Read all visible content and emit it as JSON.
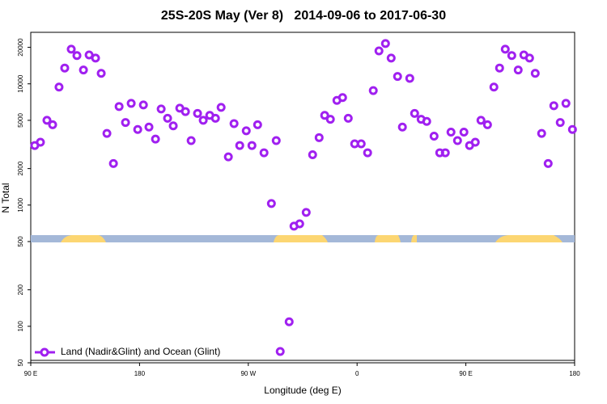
{
  "chart_data": {
    "type": "scatter",
    "title": "25S-20S May (Ver 8)   2014-09-06 to 2017-06-30",
    "x_label": "Longitude (deg E)",
    "y_label": "N Total",
    "xlim": [
      90,
      540
    ],
    "xticks": [
      {
        "value": 90,
        "label": "90 E"
      },
      {
        "value": 180,
        "label": "180"
      },
      {
        "value": 270,
        "label": "90 W"
      },
      {
        "value": 360,
        "label": "0"
      },
      {
        "value": 450,
        "label": "90 E"
      },
      {
        "value": 540,
        "label": "180"
      }
    ],
    "ylim": [
      50,
      26600
    ],
    "yticks": [
      50,
      100,
      200,
      500,
      1000,
      2000,
      5000,
      10000,
      20000
    ],
    "y_scale": "log",
    "legend": "lower left",
    "x": [
      93.3,
      98.0,
      103.4,
      108.1,
      113.4,
      118.1,
      123.5,
      128.2,
      133.6,
      138.3,
      143.6,
      148.3,
      153.0,
      158.4,
      163.1,
      168.4,
      173.1,
      178.5,
      183.2,
      187.8,
      193.2,
      197.9,
      203.2,
      207.9,
      213.3,
      218.0,
      222.7,
      228.0,
      232.7,
      238.1,
      242.8,
      247.5,
      253.5,
      258.2,
      262.9,
      268.3,
      273.0,
      277.7,
      283.0,
      289.1,
      293.1,
      296.4,
      303.8,
      307.8,
      312.5,
      317.9,
      323.2,
      328.6,
      333.2,
      337.9,
      343.3,
      348.0,
      352.7,
      358.0,
      363.4,
      368.7,
      373.4,
      378.1,
      383.5,
      388.2,
      393.5,
      397.5,
      403.6,
      407.6,
      413.0,
      417.6,
      423.7,
      428.4,
      433.0,
      437.7,
      443.1,
      448.4,
      453.1,
      457.8,
      462.5,
      467.9,
      473.2,
      477.9,
      482.6,
      488.0,
      493.3,
      498.0,
      502.7,
      507.4,
      512.7,
      518.1,
      522.8,
      528.1,
      532.8,
      538.2
    ],
    "series": [
      {
        "name": "Land (Nadir&Glint) and Ocean (Glint)",
        "color": "#a020f0",
        "values": [
          3100,
          3300,
          5000,
          4600,
          9400,
          13500,
          19300,
          17100,
          13000,
          17300,
          16300,
          12200,
          3900,
          2200,
          6500,
          4800,
          6900,
          4200,
          6700,
          4400,
          3500,
          6200,
          5200,
          4500,
          6300,
          5900,
          3400,
          5700,
          5000,
          5500,
          5200,
          6400,
          2500,
          4700,
          3100,
          4100,
          3100,
          4600,
          2700,
          1030,
          3400,
          62,
          109,
          670,
          700,
          870,
          2600,
          3600,
          5500,
          5100,
          7300,
          7700,
          5200,
          3200,
          3200,
          2700,
          8800,
          18700,
          21500,
          16300,
          11500,
          4400,
          11100,
          5700,
          5100,
          4900,
          3700,
          2700,
          2700,
          4000,
          3400,
          4000,
          3100,
          3300,
          5000,
          4600,
          9400,
          13500,
          19300,
          17100,
          13000,
          17300,
          16300,
          12200,
          3900,
          2200,
          6600,
          4800,
          6900,
          4200
        ]
      }
    ]
  }
}
